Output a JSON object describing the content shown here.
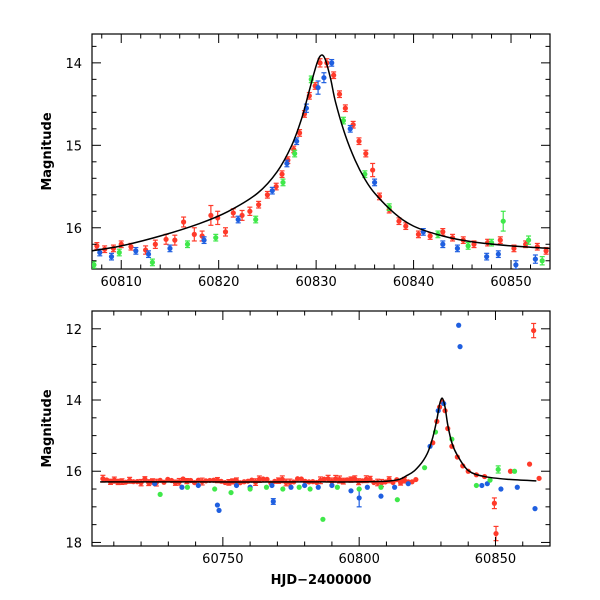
{
  "chart_data": [
    {
      "type": "scatter",
      "title": "",
      "xlabel": "",
      "ylabel": "Magnitude",
      "xlim": [
        60807,
        60854
      ],
      "ylim": [
        16.5,
        13.65
      ],
      "y_inverted": true,
      "xticks": [
        60810,
        60820,
        60830,
        60840,
        60850
      ],
      "yticks": [
        14,
        15,
        16
      ],
      "grid": false,
      "legend": "none",
      "model": {
        "name": "",
        "color": "#000000",
        "x": [
          60807,
          60810,
          60814,
          60818,
          60821,
          60824,
          60826,
          60827.5,
          60828.5,
          60829.2,
          60829.7,
          60830.1,
          60830.4,
          60830.7,
          60831,
          60831.5,
          60832,
          60833,
          60834,
          60835,
          60836,
          60838,
          60840,
          60843,
          60846,
          60850,
          60854
        ],
        "y": [
          16.28,
          16.22,
          16.1,
          15.95,
          15.8,
          15.58,
          15.32,
          15.0,
          14.68,
          14.38,
          14.16,
          14.0,
          13.92,
          13.91,
          13.98,
          14.2,
          14.48,
          14.88,
          15.18,
          15.41,
          15.58,
          15.82,
          15.98,
          16.1,
          16.17,
          16.22,
          16.25
        ]
      },
      "series": [
        {
          "name": "",
          "color": "#ff3a2a",
          "x": [
            60807.5,
            60808.3,
            60809.2,
            60810,
            60811,
            60812.5,
            60813.5,
            60814.6,
            60815.5,
            60816.4,
            60817.5,
            60818.3,
            60819.2,
            60819.9,
            60820.7,
            60821.5,
            60822.4,
            60823.2,
            60824.1,
            60825,
            60825.9,
            60826.5,
            60827.1,
            60827.7,
            60828.3,
            60828.8,
            60829.3,
            60829.9,
            60830.4,
            60831.1,
            60831.8,
            60832.4,
            60833,
            60833.8,
            60834.4,
            60835.1,
            60835.8,
            60836.5,
            60837.5,
            60838.5,
            60839.2,
            60840.5,
            60841.7,
            60843,
            60844,
            60845.1,
            60846.2,
            60847.6,
            60848.9,
            60850.3,
            60851.5,
            60852.7,
            60853.6
          ],
          "y": [
            16.22,
            16.26,
            16.25,
            16.2,
            16.23,
            16.27,
            16.2,
            16.14,
            16.15,
            15.93,
            16.08,
            16.1,
            15.85,
            15.88,
            16.05,
            15.82,
            15.85,
            15.8,
            15.72,
            15.6,
            15.5,
            15.35,
            15.18,
            15.05,
            14.85,
            14.62,
            14.4,
            14.28,
            14.0,
            14.0,
            14.15,
            14.38,
            14.55,
            14.75,
            14.95,
            15.1,
            15.3,
            15.62,
            15.78,
            15.92,
            15.98,
            16.08,
            16.1,
            16.05,
            16.12,
            16.15,
            16.2,
            16.18,
            16.15,
            16.25,
            16.2,
            16.23,
            16.28
          ],
          "err": [
            0.04,
            0.04,
            0.04,
            0.04,
            0.04,
            0.05,
            0.05,
            0.06,
            0.06,
            0.06,
            0.08,
            0.06,
            0.12,
            0.08,
            0.05,
            0.05,
            0.06,
            0.05,
            0.04,
            0.04,
            0.04,
            0.04,
            0.04,
            0.04,
            0.04,
            0.04,
            0.04,
            0.04,
            0.05,
            0.05,
            0.04,
            0.04,
            0.04,
            0.04,
            0.04,
            0.04,
            0.08,
            0.04,
            0.04,
            0.04,
            0.04,
            0.04,
            0.04,
            0.04,
            0.04,
            0.04,
            0.04,
            0.04,
            0.04,
            0.04,
            0.04,
            0.04,
            0.04
          ]
        },
        {
          "name": "",
          "color": "#1f5fe0",
          "x": [
            60807.8,
            60809,
            60811.5,
            60812.8,
            60815,
            60818.5,
            60822,
            60825.5,
            60827,
            60828,
            60829,
            60830.2,
            60830.8,
            60831.6,
            60833.5,
            60836,
            60841,
            60843,
            60844.5,
            60847.5,
            60848.7,
            60850.5,
            60852.5
          ],
          "y": [
            16.3,
            16.35,
            16.28,
            16.32,
            16.25,
            16.15,
            15.9,
            15.55,
            15.22,
            14.95,
            14.55,
            14.3,
            14.18,
            14.0,
            14.8,
            15.45,
            16.05,
            16.2,
            16.25,
            16.35,
            16.32,
            16.45,
            16.38
          ],
          "err": [
            0.04,
            0.04,
            0.04,
            0.04,
            0.04,
            0.04,
            0.04,
            0.04,
            0.04,
            0.04,
            0.05,
            0.08,
            0.06,
            0.04,
            0.04,
            0.04,
            0.04,
            0.04,
            0.04,
            0.04,
            0.04,
            0.05,
            0.05
          ]
        },
        {
          "name": "",
          "color": "#3fe84a",
          "x": [
            60807.2,
            60809.8,
            60813.2,
            60816.8,
            60819.7,
            60823.8,
            60826.6,
            60827.8,
            60829.5,
            60832.8,
            60835,
            60837.5,
            60842.5,
            60845.6,
            60848,
            60849.2,
            60851.8,
            60853.2
          ],
          "y": [
            16.45,
            16.3,
            16.42,
            16.2,
            16.12,
            15.9,
            15.45,
            15.1,
            14.2,
            14.7,
            15.35,
            15.75,
            16.08,
            16.22,
            16.18,
            15.92,
            16.15,
            16.4
          ],
          "err": [
            0.04,
            0.04,
            0.04,
            0.04,
            0.04,
            0.04,
            0.04,
            0.04,
            0.04,
            0.04,
            0.04,
            0.04,
            0.04,
            0.04,
            0.04,
            0.12,
            0.05,
            0.05
          ]
        }
      ]
    },
    {
      "type": "scatter",
      "title": "",
      "xlabel": "HJD−2400000",
      "ylabel": "Magnitude",
      "xlim": [
        60702,
        60870
      ],
      "ylim": [
        18.1,
        11.5
      ],
      "y_inverted": true,
      "xticks": [
        60750,
        60800,
        60850
      ],
      "yticks": [
        12,
        14,
        16,
        18
      ],
      "grid": false,
      "legend": "none",
      "model": {
        "name": "",
        "color": "#000000",
        "x": [
          60705,
          60740,
          60780,
          60810,
          60818,
          60822,
          60825,
          60827,
          60828.5,
          60829.5,
          60830.5,
          60831.5,
          60832.5,
          60834,
          60836,
          60840,
          60846,
          60855,
          60865
        ],
        "y": [
          16.3,
          16.3,
          16.3,
          16.28,
          16.1,
          15.85,
          15.5,
          15.05,
          14.55,
          14.12,
          13.95,
          14.2,
          14.7,
          15.2,
          15.55,
          15.98,
          16.15,
          16.23,
          16.27
        ],
        "x_end_of_line_fraction": 1
      },
      "series": [
        {
          "name": "",
          "color": "#ff3a2a",
          "dense_baseline": {
            "x_start": 60706,
            "x_end": 60822,
            "step": 1.4,
            "y": 16.27,
            "scatter": 0.12
          },
          "x": [
            60827,
            60828.5,
            60829.5,
            60830.5,
            60831.5,
            60832.5,
            60834,
            60836,
            60838,
            60840,
            60843,
            60846,
            60849.6,
            60850.2,
            60855.5,
            60862.5,
            60864,
            60866
          ],
          "y": [
            15.2,
            14.6,
            14.2,
            14.05,
            14.3,
            14.8,
            15.3,
            15.6,
            15.85,
            16.0,
            16.1,
            16.15,
            16.9,
            17.75,
            16.0,
            15.8,
            12.05,
            16.2
          ],
          "err": [
            0.05,
            0.05,
            0.05,
            0.05,
            0.05,
            0.05,
            0.05,
            0.05,
            0.05,
            0.05,
            0.05,
            0.05,
            0.15,
            0.2,
            0.05,
            0.05,
            0.2,
            0.05
          ]
        },
        {
          "name": "",
          "color": "#1f5fe0",
          "x": [
            60725,
            60735,
            60741,
            60748,
            60748.6,
            60755,
            60760,
            60768,
            60768.5,
            60775,
            60780,
            60785,
            60790,
            60797,
            60800,
            60803,
            60808,
            60813,
            60818,
            60826,
            60829,
            60831,
            60836.5,
            60837,
            60845,
            60847,
            60852,
            60858,
            60864.5
          ],
          "y": [
            16.35,
            16.45,
            16.4,
            16.95,
            17.1,
            16.4,
            16.45,
            16.4,
            16.85,
            16.45,
            16.4,
            16.45,
            16.4,
            16.55,
            16.75,
            16.45,
            16.7,
            16.45,
            16.35,
            15.3,
            14.3,
            14.1,
            11.9,
            12.5,
            16.4,
            16.35,
            16.5,
            16.45,
            17.05
          ],
          "err": [
            0.04,
            0.04,
            0.04,
            0.05,
            0.06,
            0.04,
            0.04,
            0.04,
            0.08,
            0.04,
            0.04,
            0.04,
            0.04,
            0.05,
            0.25,
            0.04,
            0.04,
            0.04,
            0.04,
            0.04,
            0.04,
            0.04,
            0.05,
            0.05,
            0.04,
            0.04,
            0.04,
            0.04,
            0.05
          ]
        },
        {
          "name": "",
          "color": "#3fe84a",
          "x": [
            60727,
            60737,
            60747,
            60753,
            60760,
            60766,
            60772,
            60778,
            60782,
            60786.7,
            60792,
            60800,
            60808,
            60814,
            60824,
            60828,
            60834,
            60843,
            60848,
            60851,
            60857
          ],
          "y": [
            16.65,
            16.45,
            16.5,
            16.6,
            16.5,
            16.45,
            16.5,
            16.45,
            16.5,
            17.35,
            16.45,
            16.5,
            16.45,
            16.8,
            15.9,
            14.9,
            15.1,
            16.4,
            16.25,
            15.95,
            16.0
          ],
          "err": [
            0.04,
            0.04,
            0.04,
            0.06,
            0.04,
            0.04,
            0.04,
            0.04,
            0.04,
            0.05,
            0.04,
            0.04,
            0.04,
            0.04,
            0.04,
            0.04,
            0.04,
            0.04,
            0.05,
            0.1,
            0.06
          ]
        }
      ]
    }
  ]
}
